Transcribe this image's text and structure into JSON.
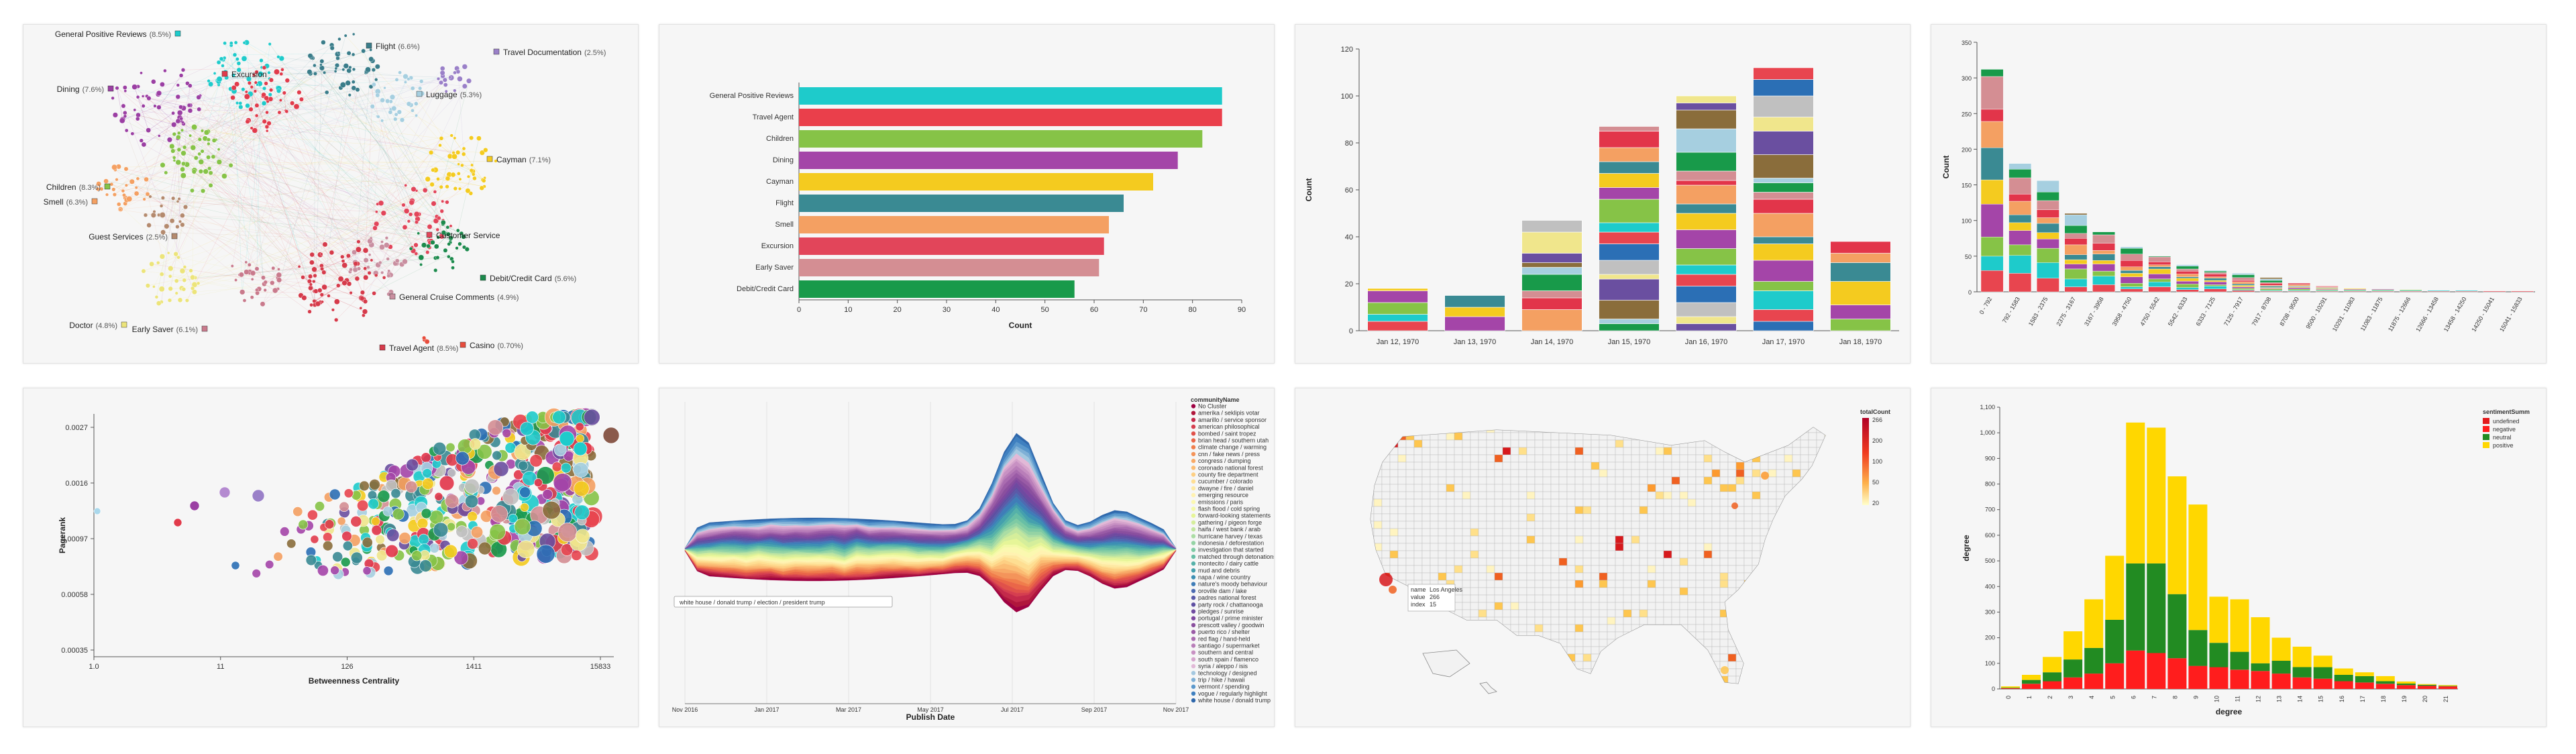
{
  "chart_data": [
    {
      "type": "network",
      "clusters": [
        {
          "label": "General Positive Reviews",
          "pct": "(8.5%)",
          "color": "#1ecbcb"
        },
        {
          "label": "Flight",
          "pct": "(6.6%)",
          "color": "#3a7d8a"
        },
        {
          "label": "Travel Documentation",
          "pct": "(2.5%)",
          "color": "#9a80c8"
        },
        {
          "label": "Luggage",
          "pct": "(5.3%)",
          "color": "#a6cfe0"
        },
        {
          "label": "Dining",
          "pct": "(7.6%)",
          "color": "#9b3fa3"
        },
        {
          "label": "Excursion",
          "pct": "",
          "color": "#e13b4b"
        },
        {
          "label": "Cayman",
          "pct": "(7.1%)",
          "color": "#f4cb1f"
        },
        {
          "label": "Children",
          "pct": "(8.3%)",
          "color": "#86c347"
        },
        {
          "label": "Smell",
          "pct": "(6.3%)",
          "color": "#f4a062"
        },
        {
          "label": "Guest Services",
          "pct": "(2.5%)",
          "color": "#b48a6e"
        },
        {
          "label": "Customer Service",
          "pct": "",
          "color": "#e2455a"
        },
        {
          "label": "Debit/Credit Card",
          "pct": "(5.6%)",
          "color": "#1b8a4c"
        },
        {
          "label": "General Cruise Comments",
          "pct": "(4.9%)",
          "color": "#c98fa0"
        },
        {
          "label": "Doctor",
          "pct": "(4.8%)",
          "color": "#ece47a"
        },
        {
          "label": "Early Saver",
          "pct": "(6.1%)",
          "color": "#c97a8c"
        },
        {
          "label": "Travel Agent",
          "pct": "(8.5%)",
          "color": "#d63b4b"
        },
        {
          "label": "Casino",
          "pct": "(0.70%)",
          "color": "#e74c3c"
        }
      ]
    },
    {
      "type": "bar",
      "orientation": "horizontal",
      "categories": [
        "General Positive Reviews",
        "Travel Agent",
        "Children",
        "Dining",
        "Cayman",
        "Flight",
        "Smell",
        "Excursion",
        "Early Saver",
        "Debit/Credit Card"
      ],
      "values": [
        86,
        86,
        82,
        77,
        72,
        66,
        63,
        62,
        61,
        56
      ],
      "colors": [
        "#1ecbcb",
        "#ea3f4b",
        "#86c347",
        "#a445a8",
        "#f4cb1f",
        "#3a8a93",
        "#f4a062",
        "#e2455a",
        "#d48e93",
        "#189a4a"
      ],
      "xlabel": "Count",
      "xticks": [
        0,
        10,
        20,
        30,
        40,
        50,
        60,
        70,
        80,
        90
      ],
      "xlim": [
        0,
        90
      ]
    },
    {
      "type": "bar",
      "stacked": true,
      "categories": [
        "Jan 12, 1970",
        "Jan 13, 1970",
        "Jan 14, 1970",
        "Jan 15, 1970",
        "Jan 16, 1970",
        "Jan 17, 1970",
        "Jan 18, 1970"
      ],
      "totals": [
        18,
        15,
        47,
        87,
        100,
        112,
        38
      ],
      "ylabel": "Count",
      "yticks": [
        0,
        20,
        40,
        60,
        80,
        100,
        120
      ],
      "ylim": [
        0,
        120
      ],
      "palette": [
        "#e8454f",
        "#1ecbcb",
        "#86c347",
        "#a445a8",
        "#f4cb1f",
        "#3a8a93",
        "#f4a062",
        "#e2354a",
        "#d48e93",
        "#189a4a",
        "#a6cfe0",
        "#8a6d3b",
        "#6a4fa0",
        "#f0e68c",
        "#c0c0c0",
        "#2b6fb5"
      ]
    },
    {
      "type": "bar",
      "stacked": true,
      "categories": [
        "0 - 792",
        "792 - 1583",
        "1583 - 2375",
        "2375 - 3167",
        "3167 - 3958",
        "3958 - 4750",
        "4750 - 5542",
        "5542 - 6333",
        "6333 - 7125",
        "7125 - 7917",
        "7917 - 8708",
        "8708 - 9500",
        "9500 - 10291",
        "10291 - 11083",
        "11083 - 11875",
        "11875 - 12666",
        "12666 - 13458",
        "13458 - 14250",
        "14250 - 15041",
        "15041 - 15833"
      ],
      "totals": [
        312,
        180,
        156,
        110,
        84,
        63,
        50,
        38,
        30,
        26,
        20,
        12,
        8,
        5,
        4,
        3,
        2,
        2,
        1,
        1
      ],
      "ylabel": "Count",
      "yticks": [
        0,
        50,
        100,
        150,
        200,
        250,
        300,
        350
      ],
      "ylim": [
        0,
        350
      ]
    },
    {
      "type": "scatter",
      "xscale": "log",
      "yscale": "log",
      "xlabel": "Betweenness Centrality",
      "ylabel": "Pagerank",
      "xticks": [
        "1.0",
        "11",
        "126",
        "1411",
        "15833"
      ],
      "yticks": [
        "0.0027",
        "0.0016",
        "0.00097",
        "0.00058",
        "0.00035"
      ]
    },
    {
      "type": "area",
      "stacked": true,
      "xlabel": "Publish Date",
      "xticks": [
        "Nov 2016",
        "Jan 2017",
        "Mar 2017",
        "May 2017",
        "Jul 2017",
        "Sep 2017",
        "Nov 2017"
      ],
      "tooltip": "white house / donald trump / election / president trump",
      "legend_title": "communityName",
      "legend": [
        {
          "label": "No Cluster",
          "color": "#9e0142"
        },
        {
          "label": "amerika / seklipis votar",
          "color": "#b0173c"
        },
        {
          "label": "amarillo / service sponsor",
          "color": "#c42a4b"
        },
        {
          "label": "american philosophical",
          "color": "#d53e4f"
        },
        {
          "label": "bombed / saint tropez",
          "color": "#e0514a"
        },
        {
          "label": "brian head / southern utah",
          "color": "#ea6648"
        },
        {
          "label": "climate change / warming",
          "color": "#f07d4c"
        },
        {
          "label": "cnn / fake news / press",
          "color": "#f4945a"
        },
        {
          "label": "congress / dumping",
          "color": "#f8aa67"
        },
        {
          "label": "coronado national forest",
          "color": "#fbbd74"
        },
        {
          "label": "county fire department",
          "color": "#fdcf83"
        },
        {
          "label": "cucumber / colorado",
          "color": "#fede92"
        },
        {
          "label": "dwayne / fire / daniel",
          "color": "#fee9a2"
        },
        {
          "label": "emerging resource",
          "color": "#fff2b1"
        },
        {
          "label": "emissions / paris",
          "color": "#fbf8b0"
        },
        {
          "label": "flash flood / cold spring",
          "color": "#f3f9a6"
        },
        {
          "label": "forward-looking statements",
          "color": "#e6f598"
        },
        {
          "label": "gathering / pigeon forge",
          "color": "#d5ee9b"
        },
        {
          "label": "haifa / west bank / arab",
          "color": "#c1e69f"
        },
        {
          "label": "hurricane harvey / texas",
          "color": "#abdda4"
        },
        {
          "label": "indonesia / deforestation",
          "color": "#94d3a4"
        },
        {
          "label": "investigation that started",
          "color": "#7ecaa4"
        },
        {
          "label": "matched through detonations",
          "color": "#68bfa5"
        },
        {
          "label": "montecito / dairy cattle",
          "color": "#55b1a9"
        },
        {
          "label": "mud and debris",
          "color": "#45a0ad"
        },
        {
          "label": "napa / wine country",
          "color": "#3c8fb3"
        },
        {
          "label": "nature's moody behaviour",
          "color": "#3f7db8"
        },
        {
          "label": "oroville dam / lake",
          "color": "#4c6bb1"
        },
        {
          "label": "padres national forest",
          "color": "#5a5aa8"
        },
        {
          "label": "party rock / chattanooga",
          "color": "#5e4fa2"
        },
        {
          "label": "pledges / sunrise",
          "color": "#6f4aa0"
        },
        {
          "label": "portugal / prime minister",
          "color": "#7e47a0"
        },
        {
          "label": "prescott valley / goodwin",
          "color": "#8a4f9e"
        },
        {
          "label": "puerto rico / shelter",
          "color": "#9a5ba6"
        },
        {
          "label": "red flag / hand-held",
          "color": "#aa6cb0"
        },
        {
          "label": "santiago / supermarket",
          "color": "#b97eb9"
        },
        {
          "label": "southern and central",
          "color": "#c891c3"
        },
        {
          "label": "south spain / flamenco",
          "color": "#d6a5cd"
        },
        {
          "label": "syria / aleppo / isis",
          "color": "#e2b9d7"
        },
        {
          "label": "technology / designed",
          "color": "#a4c8e0"
        },
        {
          "label": "trip / hike / hawaii",
          "color": "#7fb0d6"
        },
        {
          "label": "vermont / spending",
          "color": "#5b98cc"
        },
        {
          "label": "vogue / regularly highlight",
          "color": "#3f80c0"
        },
        {
          "label": "white house / donald trump",
          "color": "#2e67ab"
        }
      ]
    },
    {
      "type": "map",
      "legend_title": "totalCount",
      "legend_ticks": [
        "266",
        "200",
        "100",
        "50",
        "20"
      ],
      "tooltip": [
        {
          "key": "name",
          "value": "Los Angeles"
        },
        {
          "key": "value",
          "value": "266"
        },
        {
          "key": "index",
          "value": "15"
        }
      ]
    },
    {
      "type": "bar",
      "stacked": true,
      "categories": [
        "0",
        "1",
        "2",
        "3",
        "4",
        "5",
        "6",
        "7",
        "8",
        "9",
        "10",
        "11",
        "12",
        "13",
        "14",
        "15",
        "16",
        "17",
        "18",
        "19",
        "20",
        "21"
      ],
      "xlabel": "degree",
      "ylabel": "degree",
      "yticks": [
        "0",
        "100",
        "200",
        "300",
        "400",
        "500",
        "600",
        "700",
        "800",
        "900",
        "1,000",
        "1,100"
      ],
      "ylim": [
        0,
        1100
      ],
      "legend_title": "sentimentSumm",
      "series": [
        {
          "name": "undefined",
          "color": "#e31a1c",
          "values": [
            0,
            0,
            0,
            0,
            0,
            0,
            0,
            0,
            0,
            0,
            0,
            0,
            0,
            0,
            0,
            0,
            0,
            0,
            0,
            0,
            0,
            0
          ]
        },
        {
          "name": "negative",
          "color": "#ff1d1d",
          "values": [
            3,
            20,
            30,
            45,
            60,
            100,
            150,
            140,
            120,
            90,
            85,
            75,
            70,
            60,
            45,
            40,
            30,
            25,
            20,
            15,
            12,
            10
          ]
        },
        {
          "name": "neutral",
          "color": "#228b22",
          "values": [
            2,
            15,
            35,
            70,
            100,
            170,
            340,
            350,
            250,
            140,
            95,
            70,
            30,
            50,
            40,
            45,
            25,
            25,
            10,
            6,
            4,
            2
          ]
        },
        {
          "name": "positive",
          "color": "#ffd700",
          "values": [
            5,
            20,
            60,
            110,
            190,
            250,
            550,
            530,
            460,
            490,
            180,
            205,
            180,
            90,
            80,
            45,
            25,
            15,
            20,
            8,
            3,
            3
          ]
        }
      ]
    }
  ]
}
